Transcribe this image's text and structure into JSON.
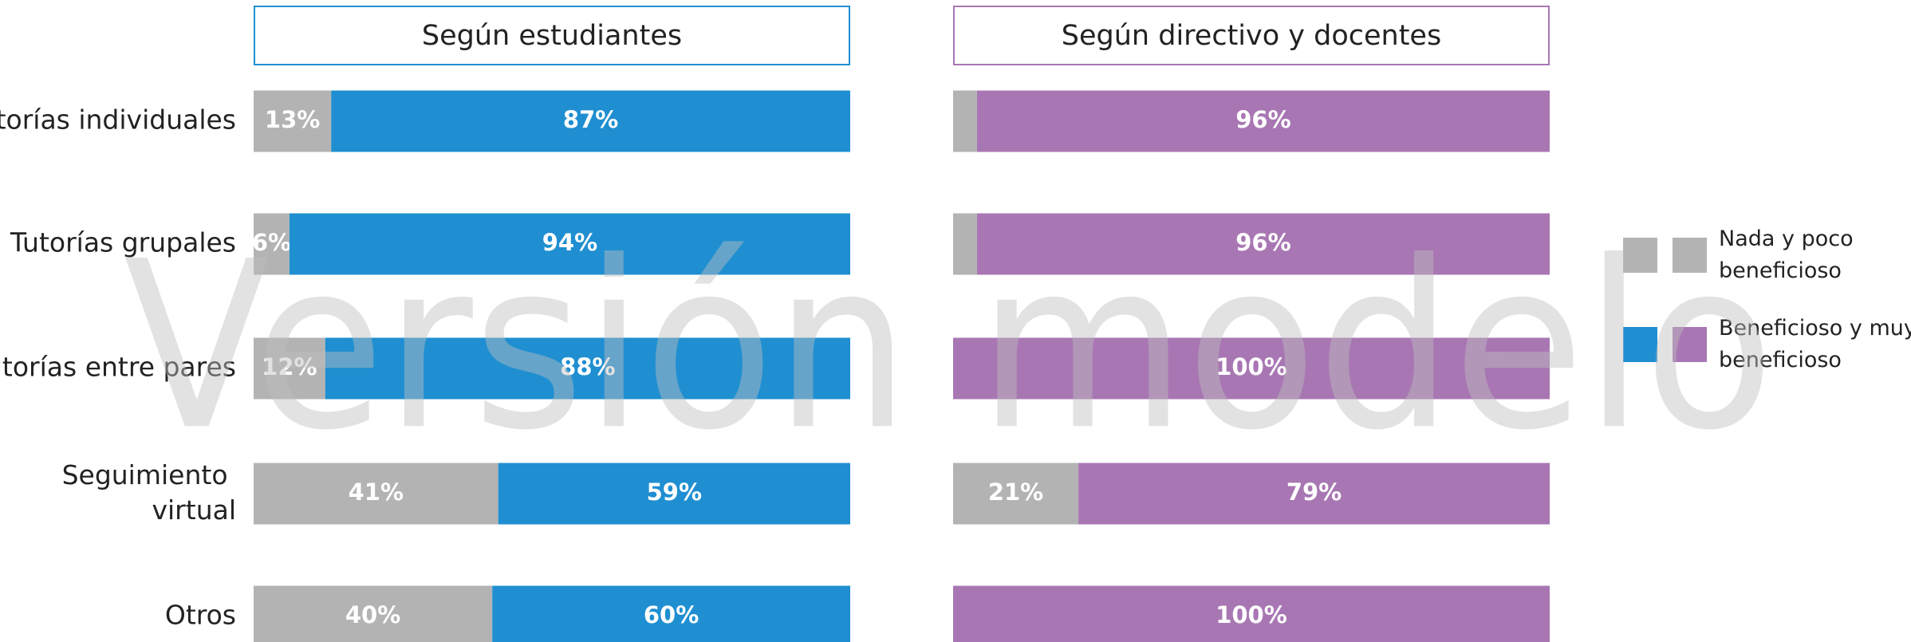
{
  "watermark": "Versión modelo",
  "chart_data": [
    {
      "type": "stacked-bar-horizontal",
      "title": "Según estudiantes",
      "categories": [
        "Tutorías individuales",
        "Tutorías grupales",
        "Tutorías entre pares",
        "Seguimiento virtual",
        "Otros"
      ],
      "xlim": [
        0,
        100
      ],
      "border_color": "#1f8fd1",
      "series": [
        {
          "name": "Nada y poco beneficioso",
          "color": "#b3b3b3",
          "values": [
            13,
            6,
            12,
            41,
            40
          ],
          "value_labels": [
            "13%",
            "6%",
            "12%",
            "41%",
            "40%"
          ]
        },
        {
          "name": "Beneficioso y muy beneficioso",
          "color": "#1f8fd1",
          "values": [
            87,
            94,
            88,
            59,
            60
          ],
          "value_labels": [
            "87%",
            "94%",
            "88%",
            "59%",
            "60%"
          ]
        }
      ]
    },
    {
      "type": "stacked-bar-horizontal",
      "title": "Según directivo y docentes",
      "categories": [
        "Tutorías individuales",
        "Tutorías grupales",
        "Tutorías entre pares",
        "Seguimiento virtual",
        "Otros"
      ],
      "xlim": [
        0,
        100
      ],
      "border_color": "#a877b3",
      "series": [
        {
          "name": "Nada y poco beneficioso",
          "color": "#b3b3b3",
          "values": [
            4,
            4,
            0,
            21,
            0
          ],
          "value_labels": [
            null,
            null,
            null,
            "21%",
            null
          ]
        },
        {
          "name": "Beneficioso y muy beneficioso",
          "color": "#a877b3",
          "values": [
            96,
            96,
            100,
            79,
            100
          ],
          "value_labels": [
            "96%",
            "96%",
            "100%",
            "79%",
            "100%"
          ]
        }
      ]
    }
  ]
}
